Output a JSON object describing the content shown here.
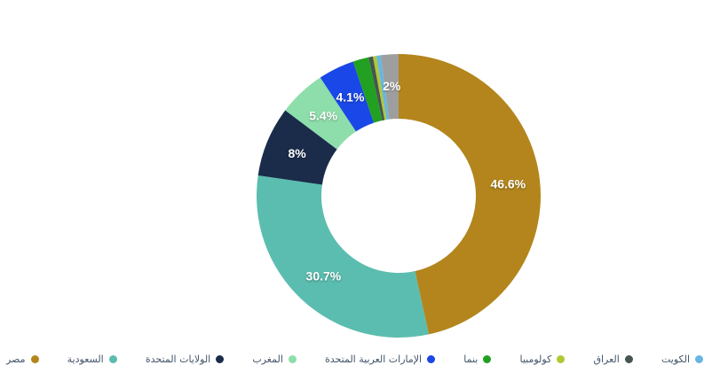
{
  "chart_data": {
    "type": "pie",
    "subtype": "donut",
    "title": "",
    "legend_position": "bottom",
    "displayed_labels": [
      "46.6%",
      "30.7%",
      "8%",
      "5.4%",
      "4.1%",
      "2%"
    ],
    "slices": [
      {
        "key": "egypt",
        "name": "مصر",
        "value": 46.6,
        "label": "46.6%",
        "color": "#B3851C"
      },
      {
        "key": "saudi-arabia",
        "name": "السعودية",
        "value": 30.7,
        "label": "30.7%",
        "color": "#5BBDAF"
      },
      {
        "key": "united-states",
        "name": "الولايات المتحدة",
        "value": 8,
        "label": "8%",
        "color": "#1A2C4A"
      },
      {
        "key": "morocco",
        "name": "المغرب",
        "value": 5.4,
        "label": "5.4%",
        "color": "#8DDEAA"
      },
      {
        "key": "uae",
        "name": "الإمارات العربية المتحدة",
        "value": 4.1,
        "label": "4.1%",
        "color": "#1A47E8"
      },
      {
        "key": "panama",
        "name": "بنما",
        "value": 1.8,
        "label": "",
        "color": "#22A022"
      },
      {
        "key": "iraq",
        "name": "العراق",
        "value": 0.5,
        "label": "",
        "color": "#46564E"
      },
      {
        "key": "colombia",
        "name": "كولومبيا",
        "value": 0.4,
        "label": "",
        "color": "#AFC834"
      },
      {
        "key": "kuwait",
        "name": "الكويت",
        "value": 0.5,
        "label": "",
        "color": "#68B6E2"
      },
      {
        "key": "other-gray",
        "name": "",
        "value": 2.0,
        "label": "2%",
        "color": "#9E9E9E"
      }
    ],
    "legend": [
      {
        "key": "egypt",
        "label": "مصر",
        "color": "#B3851C"
      },
      {
        "key": "saudi-arabia",
        "label": "السعودية",
        "color": "#5BBDAF"
      },
      {
        "key": "united-states",
        "label": "الولايات المتحدة",
        "color": "#1A2C4A"
      },
      {
        "key": "morocco",
        "label": "المغرب",
        "color": "#8DDEAA"
      },
      {
        "key": "uae",
        "label": "الإمارات العربية المتحدة",
        "color": "#1A47E8"
      },
      {
        "key": "panama",
        "label": "بنما",
        "color": "#22A022"
      },
      {
        "key": "colombia",
        "label": "كولومبيا",
        "color": "#AFC834"
      },
      {
        "key": "iraq",
        "label": "العراق",
        "color": "#46564E"
      },
      {
        "key": "kuwait",
        "label": "الكويت",
        "color": "#68B6E2"
      }
    ],
    "label_text_color": "#FFFFFF",
    "legend_text_color": "#44546A",
    "background_color": "#FFFFFF"
  }
}
